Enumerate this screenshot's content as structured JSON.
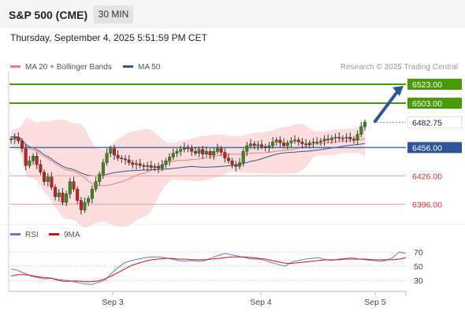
{
  "header": {
    "title": "S&P 500 (CME)",
    "timeframe": "30 MIN",
    "datetime": "Thursday, September 4, 2025 5:51:59 PM CET"
  },
  "legend": {
    "items": [
      {
        "label": "MA 20 + Bollinger Bands",
        "color": "#f08080"
      },
      {
        "label": "MA 50",
        "color": "#2e5596"
      }
    ],
    "credit": "Research © 2025 Trading Central"
  },
  "rsi_legend": {
    "items": [
      {
        "label": "RSI",
        "color": "#5b7fd6"
      },
      {
        "label": "9MA",
        "color": "#e01010"
      }
    ]
  },
  "chart_data": [
    {
      "type": "candlestick",
      "instrument": "S&P 500 (CME)",
      "timeframe": "30 MIN",
      "ylim": [
        6378,
        6533
      ],
      "x_ticks": [
        "Sep 3",
        "Sep 4",
        "Sep 5"
      ],
      "levels": [
        {
          "value": 6523.0,
          "label": "6523.00",
          "kind": "resistance",
          "color": "#4a9a0a"
        },
        {
          "value": 6503.0,
          "label": "6503.00",
          "kind": "resistance",
          "color": "#4a9a0a"
        },
        {
          "value": 6482.75,
          "label": "6482.75",
          "kind": "last",
          "color": "#222222"
        },
        {
          "value": 6456.0,
          "label": "6456.00",
          "kind": "pivot",
          "color": "#2e5596"
        },
        {
          "value": 6426.0,
          "label": "6426.00",
          "kind": "support",
          "color": "#e03030"
        },
        {
          "value": 6396.0,
          "label": "6396.00",
          "kind": "support",
          "color": "#e03030"
        }
      ],
      "closes": [
        6465,
        6467,
        6463,
        6455,
        6437,
        6442,
        6447,
        6438,
        6430,
        6420,
        6425,
        6414,
        6404,
        6408,
        6398,
        6407,
        6420,
        6412,
        6400,
        6390,
        6398,
        6402,
        6412,
        6420,
        6428,
        6440,
        6450,
        6455,
        6448,
        6445,
        6444,
        6443,
        6440,
        6438,
        6439,
        6437,
        6436,
        6437,
        6435,
        6436,
        6434,
        6438,
        6442,
        6446,
        6450,
        6452,
        6454,
        6456,
        6455,
        6452,
        6450,
        6454,
        6449,
        6452,
        6448,
        6452,
        6455,
        6451,
        6445,
        6442,
        6438,
        6436,
        6440,
        6452,
        6458,
        6460,
        6458,
        6459,
        6457,
        6456,
        6458,
        6462,
        6464,
        6461,
        6458,
        6461,
        6463,
        6464,
        6462,
        6460,
        6459,
        6461,
        6462,
        6462,
        6463,
        6465,
        6464,
        6466,
        6467,
        6466,
        6466,
        6467,
        6465,
        6464,
        6470,
        6478,
        6482.75
      ],
      "series": [
        {
          "name": "MA 20 + Bollinger Bands",
          "color": "#f08080"
        },
        {
          "name": "MA 50",
          "color": "#2e5596"
        }
      ],
      "arrow": {
        "from": 6482.75,
        "to": 6523.0,
        "direction": "up"
      }
    },
    {
      "type": "line",
      "title": "RSI",
      "ylim": [
        20,
        80
      ],
      "y_ticks": [
        70,
        50,
        30
      ],
      "rsi": [
        46,
        44,
        40,
        36,
        34,
        32,
        33,
        30,
        28,
        29,
        27,
        25,
        24,
        27,
        30,
        40,
        48,
        55,
        58,
        60,
        62,
        63,
        63,
        62,
        60,
        58,
        57,
        58,
        57,
        58,
        62,
        65,
        68,
        66,
        64,
        62,
        60,
        60,
        58,
        55,
        52,
        50,
        56,
        58,
        60,
        61,
        62,
        59,
        58,
        60,
        61,
        62,
        60,
        59,
        58,
        57,
        58,
        62,
        70,
        68
      ],
      "ma9": [
        36,
        38,
        38,
        37,
        35,
        34,
        33,
        31,
        30,
        29,
        29,
        28,
        28,
        29,
        32,
        36,
        41,
        46,
        51,
        54,
        57,
        59,
        60,
        61,
        61,
        60,
        60,
        59,
        59,
        59,
        60,
        61,
        62,
        63,
        63,
        63,
        62,
        61,
        60,
        58,
        56,
        54,
        54,
        55,
        56,
        57,
        58,
        59,
        59,
        59,
        60,
        60,
        60,
        60,
        59,
        59,
        59,
        59,
        60,
        62
      ]
    }
  ]
}
